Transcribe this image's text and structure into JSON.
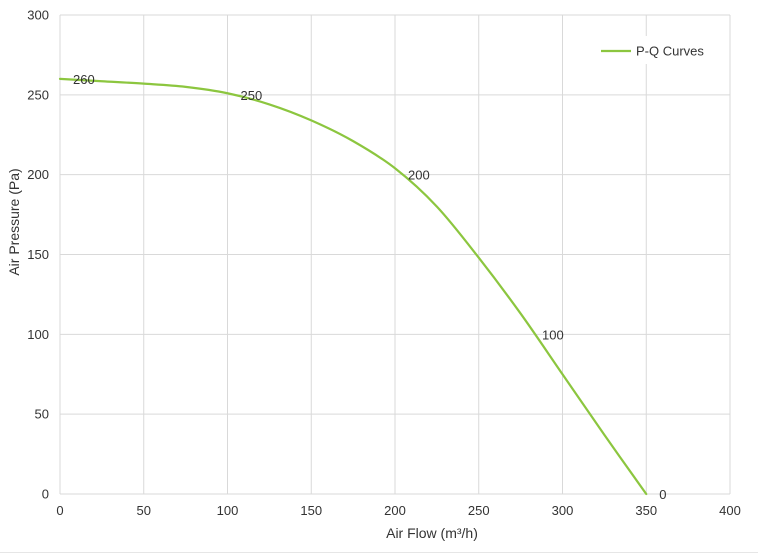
{
  "chart_data": {
    "type": "line",
    "title": "",
    "xlabel": "Air Flow  (m³/h)",
    "ylabel": "Air Pressure  (Pa)",
    "xlim": [
      0,
      400
    ],
    "ylim": [
      0,
      300
    ],
    "x_ticks": [
      0,
      50,
      100,
      150,
      200,
      250,
      300,
      350,
      400
    ],
    "y_ticks": [
      0,
      50,
      100,
      150,
      200,
      250,
      300
    ],
    "grid": true,
    "legend_position": "top-right",
    "series": [
      {
        "name": "P-Q Curves",
        "color": "#8cc63f",
        "points": [
          [
            0,
            260
          ],
          [
            25,
            258.5
          ],
          [
            50,
            257
          ],
          [
            75,
            255
          ],
          [
            100,
            251
          ],
          [
            125,
            244
          ],
          [
            150,
            234
          ],
          [
            175,
            221
          ],
          [
            200,
            204
          ],
          [
            225,
            180
          ],
          [
            250,
            148
          ],
          [
            275,
            113
          ],
          [
            300,
            75
          ],
          [
            325,
            37
          ],
          [
            350,
            0
          ]
        ]
      }
    ],
    "annotations": [
      {
        "x": 0,
        "y": 260,
        "label": "260"
      },
      {
        "x": 100,
        "y": 250,
        "label": "250"
      },
      {
        "x": 200,
        "y": 200,
        "label": "200"
      },
      {
        "x": 280,
        "y": 100,
        "label": "100"
      },
      {
        "x": 350,
        "y": 0,
        "label": "0"
      }
    ]
  }
}
